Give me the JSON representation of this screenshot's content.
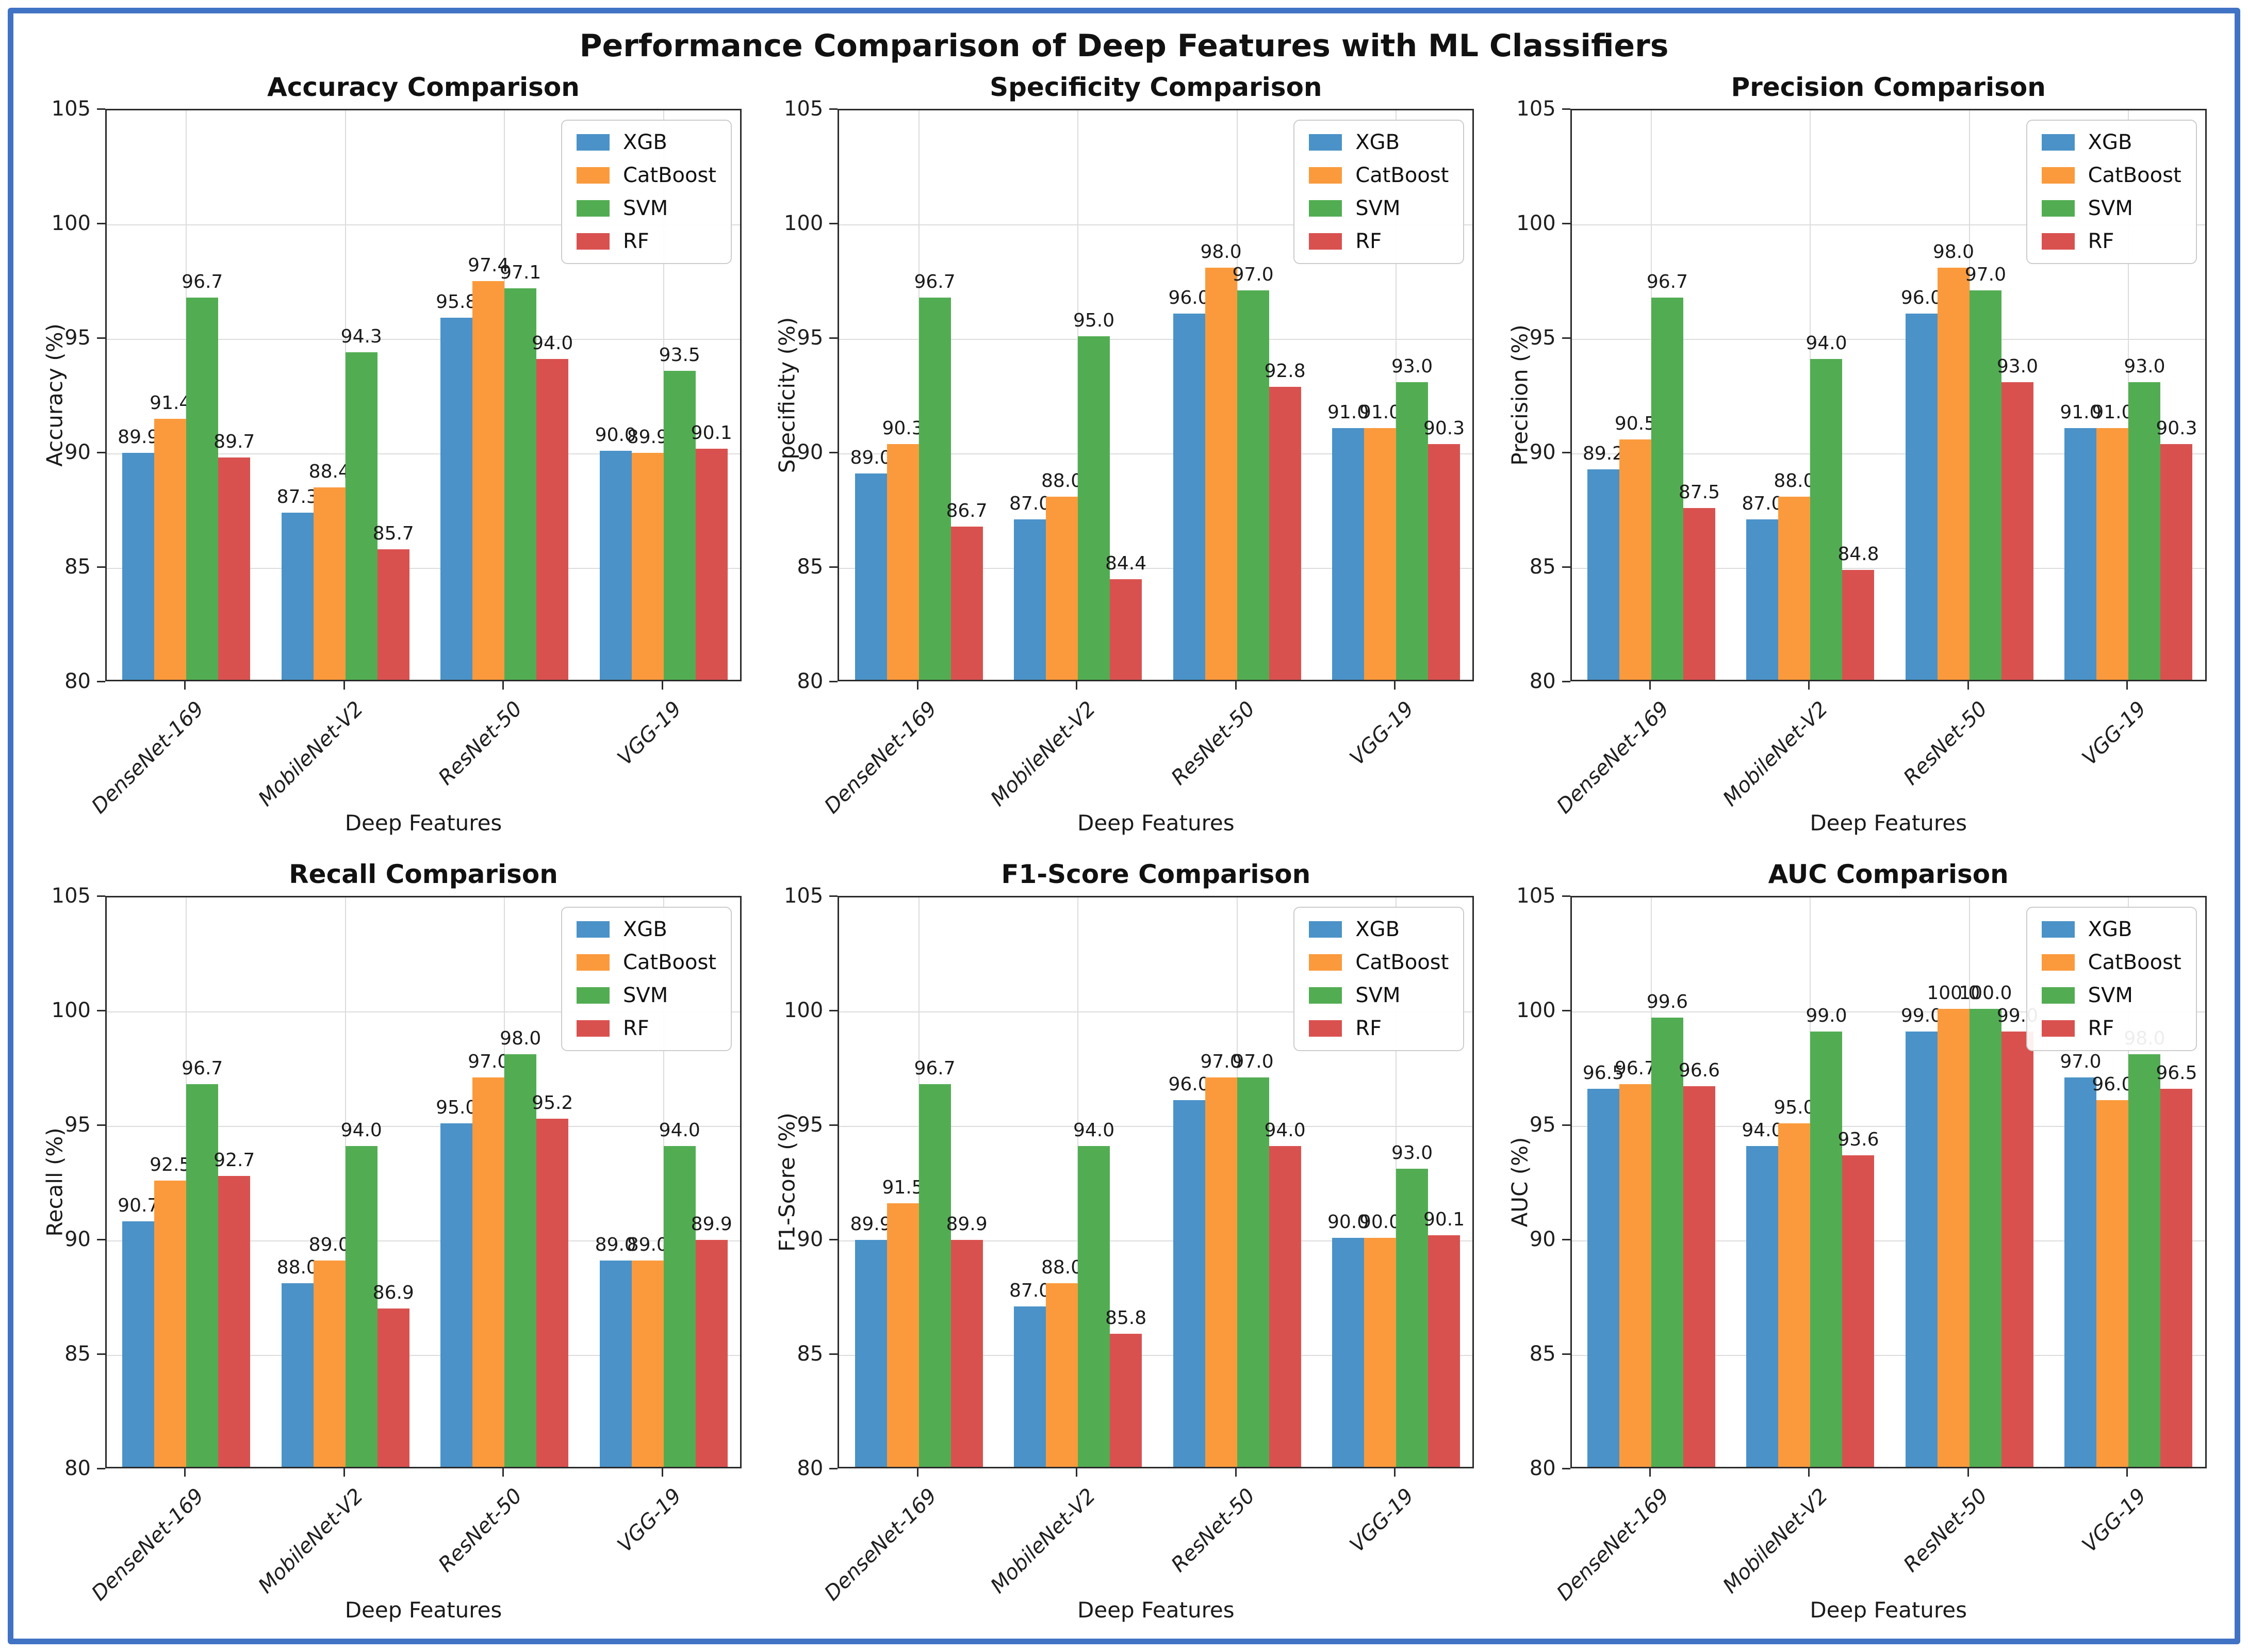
{
  "figure": {
    "title": "Performance Comparison of Deep Features with ML Classifiers",
    "border_color": "#4173c4",
    "xlabel": "Deep Features",
    "categories": [
      "DenseNet-169",
      "MobileNet-V2",
      "ResNet-50",
      "VGG-19"
    ],
    "classifiers": [
      "XGB",
      "CatBoost",
      "SVM",
      "RF"
    ],
    "colors": {
      "XGB": "#4a92c8",
      "CatBoost": "#fb9a3c",
      "SVM": "#52ad52",
      "RF": "#d9514f"
    },
    "ylim": [
      80,
      105
    ],
    "yticks": [
      80,
      85,
      90,
      95,
      100,
      105
    ],
    "legend_position": "upper right",
    "grid": true
  },
  "chart_data": [
    {
      "type": "bar",
      "title": "Accuracy Comparison",
      "ylabel": "Accuracy (%)",
      "xlabel": "Deep Features",
      "categories": [
        "DenseNet-169",
        "MobileNet-V2",
        "ResNet-50",
        "VGG-19"
      ],
      "ylim": [
        80,
        105
      ],
      "series": [
        {
          "name": "XGB",
          "values": [
            89.9,
            87.3,
            95.8,
            90.0
          ]
        },
        {
          "name": "CatBoost",
          "values": [
            91.4,
            88.4,
            97.4,
            89.9
          ]
        },
        {
          "name": "SVM",
          "values": [
            96.7,
            94.3,
            97.1,
            93.5
          ]
        },
        {
          "name": "RF",
          "values": [
            89.7,
            85.7,
            94.0,
            90.1
          ]
        }
      ]
    },
    {
      "type": "bar",
      "title": "Specificity Comparison",
      "ylabel": "Specificity (%)",
      "xlabel": "Deep Features",
      "categories": [
        "DenseNet-169",
        "MobileNet-V2",
        "ResNet-50",
        "VGG-19"
      ],
      "ylim": [
        80,
        105
      ],
      "series": [
        {
          "name": "XGB",
          "values": [
            89.0,
            87.0,
            96.0,
            91.0
          ]
        },
        {
          "name": "CatBoost",
          "values": [
            90.3,
            88.0,
            98.0,
            91.0
          ]
        },
        {
          "name": "SVM",
          "values": [
            96.7,
            95.0,
            97.0,
            93.0
          ]
        },
        {
          "name": "RF",
          "values": [
            86.7,
            84.4,
            92.8,
            90.3
          ]
        }
      ]
    },
    {
      "type": "bar",
      "title": "Precision Comparison",
      "ylabel": "Precision (%)",
      "xlabel": "Deep Features",
      "categories": [
        "DenseNet-169",
        "MobileNet-V2",
        "ResNet-50",
        "VGG-19"
      ],
      "ylim": [
        80,
        105
      ],
      "series": [
        {
          "name": "XGB",
          "values": [
            89.2,
            87.0,
            96.0,
            91.0
          ]
        },
        {
          "name": "CatBoost",
          "values": [
            90.5,
            88.0,
            98.0,
            91.0
          ]
        },
        {
          "name": "SVM",
          "values": [
            96.7,
            94.0,
            97.0,
            93.0
          ]
        },
        {
          "name": "RF",
          "values": [
            87.5,
            84.8,
            93.0,
            90.3
          ]
        }
      ]
    },
    {
      "type": "bar",
      "title": "Recall Comparison",
      "ylabel": "Recall (%)",
      "xlabel": "Deep Features",
      "categories": [
        "DenseNet-169",
        "MobileNet-V2",
        "ResNet-50",
        "VGG-19"
      ],
      "ylim": [
        80,
        105
      ],
      "series": [
        {
          "name": "XGB",
          "values": [
            90.7,
            88.0,
            95.0,
            89.0
          ]
        },
        {
          "name": "CatBoost",
          "values": [
            92.5,
            89.0,
            97.0,
            89.0
          ]
        },
        {
          "name": "SVM",
          "values": [
            96.7,
            94.0,
            98.0,
            94.0
          ]
        },
        {
          "name": "RF",
          "values": [
            92.7,
            86.9,
            95.2,
            89.9
          ]
        }
      ]
    },
    {
      "type": "bar",
      "title": "F1-Score Comparison",
      "ylabel": "F1-Score (%)",
      "xlabel": "Deep Features",
      "categories": [
        "DenseNet-169",
        "MobileNet-V2",
        "ResNet-50",
        "VGG-19"
      ],
      "ylim": [
        80,
        105
      ],
      "series": [
        {
          "name": "XGB",
          "values": [
            89.9,
            87.0,
            96.0,
            90.0
          ]
        },
        {
          "name": "CatBoost",
          "values": [
            91.5,
            88.0,
            97.0,
            90.0
          ]
        },
        {
          "name": "SVM",
          "values": [
            96.7,
            94.0,
            97.0,
            93.0
          ]
        },
        {
          "name": "RF",
          "values": [
            89.9,
            85.8,
            94.0,
            90.1
          ]
        }
      ]
    },
    {
      "type": "bar",
      "title": "AUC Comparison",
      "ylabel": "AUC (%)",
      "xlabel": "Deep Features",
      "categories": [
        "DenseNet-169",
        "MobileNet-V2",
        "ResNet-50",
        "VGG-19"
      ],
      "ylim": [
        80,
        105
      ],
      "series": [
        {
          "name": "XGB",
          "values": [
            96.5,
            94.0,
            99.0,
            97.0
          ]
        },
        {
          "name": "CatBoost",
          "values": [
            96.7,
            95.0,
            100.0,
            96.0
          ]
        },
        {
          "name": "SVM",
          "values": [
            99.6,
            99.0,
            100.0,
            98.0
          ]
        },
        {
          "name": "RF",
          "values": [
            96.6,
            93.6,
            99.0,
            96.5
          ]
        }
      ]
    }
  ]
}
